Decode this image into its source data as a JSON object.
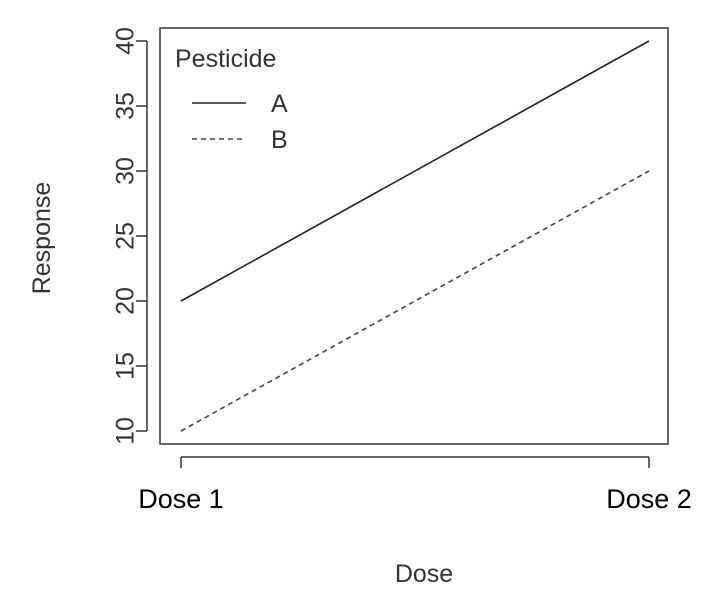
{
  "chart_data": {
    "type": "line",
    "categories": [
      "Dose 1",
      "Dose 2"
    ],
    "xlabel": "Dose",
    "ylabel": "Response",
    "ylim": [
      9,
      41
    ],
    "yticks": [
      10,
      15,
      20,
      25,
      30,
      35,
      40
    ],
    "grid": false,
    "legend": {
      "title": "Pesticide",
      "placement": "top-left"
    },
    "series": [
      {
        "name": "A",
        "values": [
          20,
          40
        ],
        "line_style": "solid",
        "color": "#222222"
      },
      {
        "name": "B",
        "values": [
          10,
          30
        ],
        "line_style": "dashed",
        "color": "#444444"
      }
    ]
  }
}
